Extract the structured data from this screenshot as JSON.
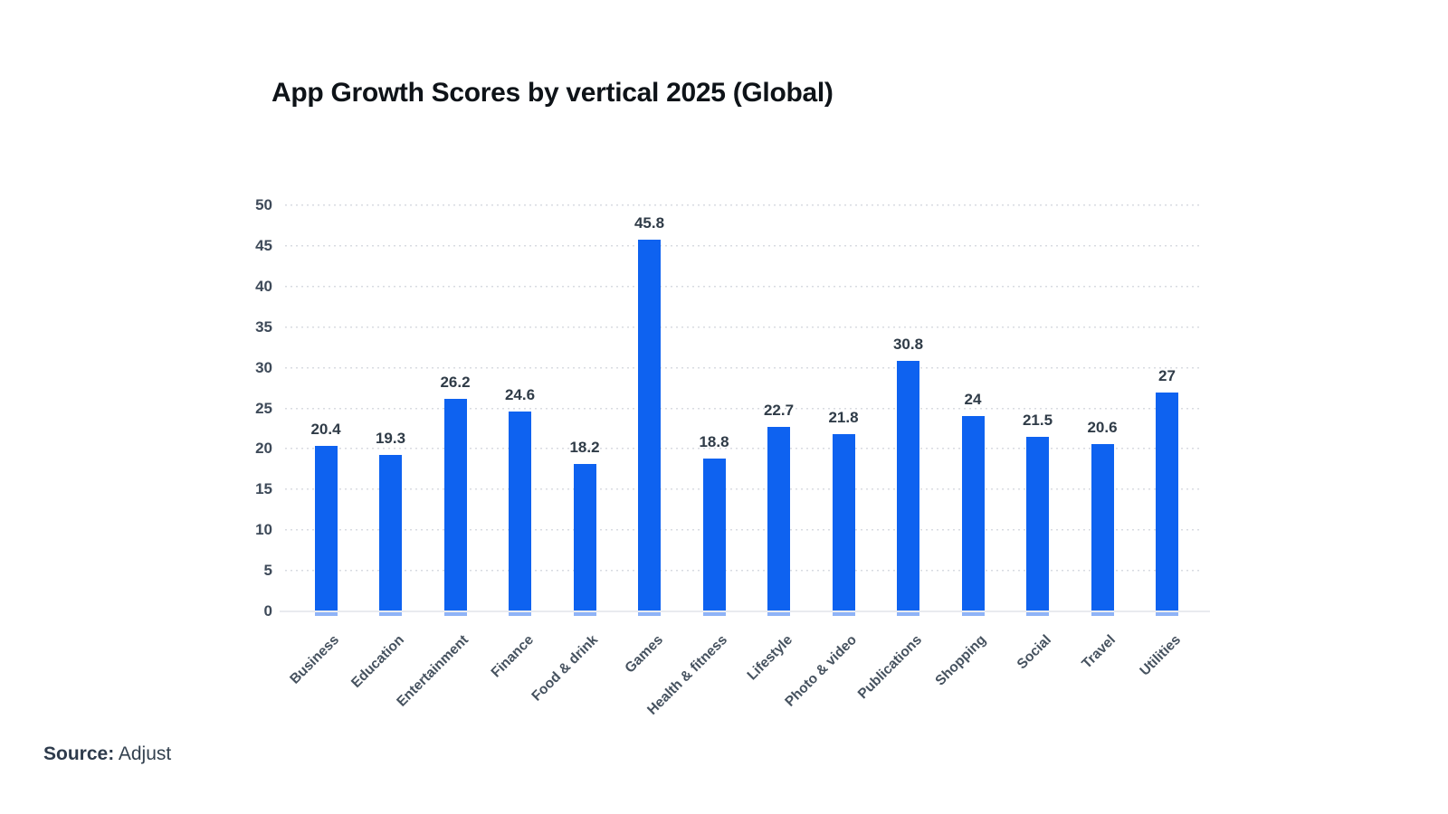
{
  "chart_data": {
    "type": "bar",
    "title": "App Growth Scores by vertical 2025 (Global)",
    "categories": [
      "Business",
      "Education",
      "Entertainment",
      "Finance",
      "Food & drink",
      "Games",
      "Health & fitness",
      "Lifestyle",
      "Photo & video",
      "Publications",
      "Shopping",
      "Social",
      "Travel",
      "Utilities"
    ],
    "values": [
      20.4,
      19.3,
      26.2,
      24.6,
      18.2,
      45.8,
      18.8,
      22.7,
      21.8,
      30.8,
      24,
      21.5,
      20.6,
      27
    ],
    "value_labels": [
      "20.4",
      "19.3",
      "26.2",
      "24.6",
      "18.2",
      "45.8",
      "18.8",
      "22.7",
      "21.8",
      "30.8",
      "24",
      "21.5",
      "20.6",
      "27"
    ],
    "xlabel": "",
    "ylabel": "",
    "ylim": [
      0,
      50
    ],
    "ytick_step": 5,
    "yticks": [
      0,
      5,
      10,
      15,
      20,
      25,
      30,
      35,
      40,
      45,
      50
    ],
    "grid": "horizontal-dotted",
    "legend": "none",
    "bar_color": "#0e62f0",
    "bar_foot_color": "#8fb3f7",
    "grid_color": "#d8dbe1",
    "baseline_color": "#e9ebef",
    "label_color": "#2f3b47",
    "tick_color": "#3e4a59"
  },
  "source": {
    "label": "Source:",
    "value": "Adjust"
  }
}
